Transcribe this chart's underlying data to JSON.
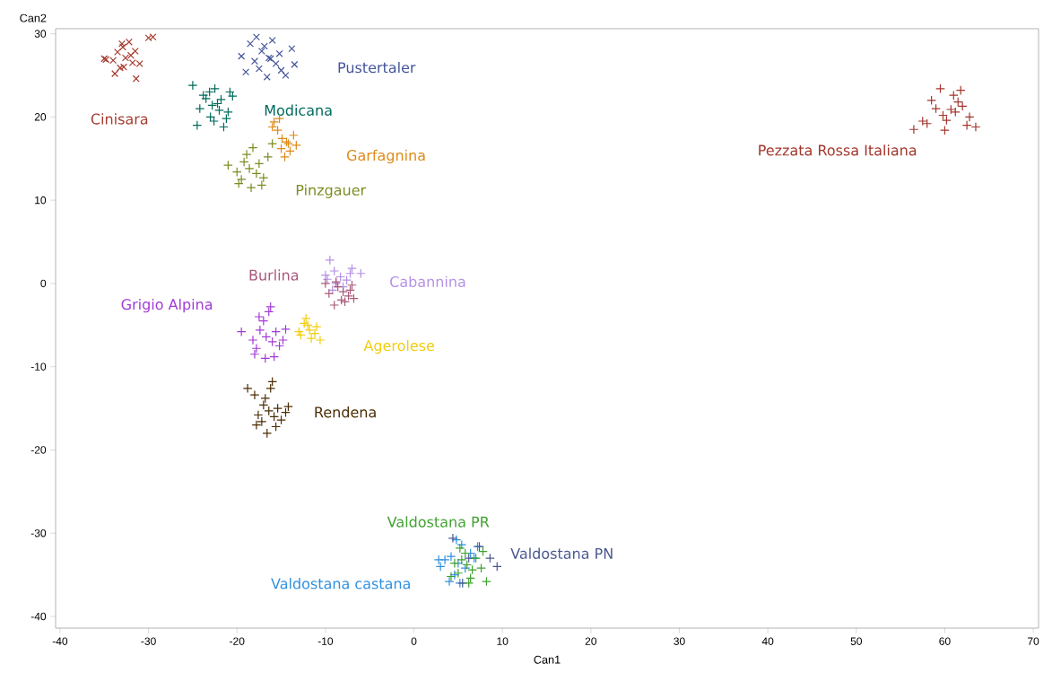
{
  "chart_data": {
    "type": "scatter",
    "xlabel": "Can1",
    "ylabel": "Can2",
    "xlim": [
      -40.5,
      70.6
    ],
    "ylim": [
      -41.4,
      30.6
    ],
    "xticks": [
      -40,
      -30,
      -20,
      -10,
      0,
      10,
      20,
      30,
      40,
      50,
      60,
      70
    ],
    "yticks": [
      -40,
      -30,
      -20,
      -10,
      0,
      10,
      20,
      30
    ],
    "grid": false,
    "series": [
      {
        "name": "Cinisara",
        "color": "#a53b2f",
        "marker": "x",
        "x": [
          -32.6,
          -33.5,
          -31.8,
          -32.9,
          -31.5,
          -34.0,
          -33.2,
          -31.0,
          -32.2,
          -35.0,
          -30.0,
          -33.8,
          -31.4,
          -32.8,
          -33.0,
          -29.5,
          -34.8,
          -32.0
        ],
        "values": [
          27.1,
          27.8,
          26.5,
          28.4,
          27.9,
          26.8,
          25.9,
          26.4,
          29.0,
          27.0,
          29.5,
          25.2,
          24.6,
          26.0,
          28.8,
          29.6,
          26.9,
          27.4
        ]
      },
      {
        "name": "Pustertaler",
        "color": "#45559a",
        "marker": "x",
        "x": [
          -16.4,
          -17.2,
          -15.6,
          -16.9,
          -15.2,
          -18.0,
          -17.5,
          -15.0,
          -16.0,
          -19.5,
          -13.8,
          -18.5,
          -14.5,
          -16.6,
          -17.8,
          -13.5,
          -19.0,
          -16.2
        ],
        "values": [
          27.1,
          27.9,
          26.4,
          28.5,
          27.6,
          26.7,
          25.8,
          25.6,
          29.2,
          27.3,
          28.2,
          28.8,
          25.0,
          24.8,
          29.6,
          26.3,
          25.4,
          27.0
        ]
      },
      {
        "name": "Modicana",
        "color": "#006b5c",
        "marker": "cross",
        "x": [
          -22.8,
          -23.5,
          -22.0,
          -23.1,
          -21.8,
          -24.2,
          -23.0,
          -21.2,
          -22.5,
          -25.0,
          -20.5,
          -24.5,
          -21.5,
          -22.6,
          -23.8,
          -21.0,
          -22.2,
          -20.8
        ],
        "values": [
          21.4,
          22.2,
          20.8,
          23.0,
          22.1,
          21.0,
          20.0,
          19.8,
          23.4,
          23.8,
          22.5,
          19.0,
          18.8,
          19.5,
          22.6,
          20.6,
          21.6,
          23.0
        ]
      },
      {
        "name": "Garfagnina",
        "color": "#dd8a1a",
        "marker": "cross",
        "x": [
          -14.9,
          -15.4,
          -14.2,
          -15.8,
          -14.0,
          -15.0,
          -13.6,
          -14.6,
          -16.0,
          -13.3,
          -15.2,
          -14.4
        ],
        "values": [
          17.4,
          18.4,
          16.8,
          19.4,
          15.9,
          16.2,
          17.8,
          15.2,
          18.8,
          16.6,
          19.8,
          17.0
        ]
      },
      {
        "name": "Pinzgauer",
        "color": "#7a8d22",
        "marker": "cross",
        "x": [
          -18.6,
          -19.2,
          -17.8,
          -18.9,
          -17.5,
          -20.0,
          -19.5,
          -17.0,
          -18.2,
          -21.0,
          -16.5,
          -19.8,
          -17.2,
          -18.4,
          -16.0
        ],
        "values": [
          13.8,
          14.6,
          13.2,
          15.5,
          14.4,
          13.4,
          12.5,
          12.7,
          16.3,
          14.2,
          15.2,
          12.0,
          11.8,
          11.5,
          16.8
        ]
      },
      {
        "name": "Pezzata Rossa Italiana",
        "color": "#a3362d",
        "marker": "cross",
        "x": [
          60.7,
          61.5,
          59.8,
          61.0,
          62.0,
          59.0,
          60.2,
          62.8,
          58.5,
          61.8,
          57.5,
          63.5,
          60.0,
          59.5,
          62.5,
          61.2,
          56.5,
          58.0
        ],
        "values": [
          20.9,
          21.8,
          20.2,
          22.6,
          21.3,
          21.0,
          19.6,
          20.0,
          22.0,
          23.2,
          19.5,
          18.8,
          18.4,
          23.4,
          19.0,
          20.6,
          18.5,
          19.2
        ]
      },
      {
        "name": "Cabannina",
        "color": "#b490e6",
        "marker": "cross",
        "x": [
          -8.3,
          -9.0,
          -7.6,
          -9.5,
          -7.2,
          -8.8,
          -9.8,
          -7.0,
          -8.0,
          -10.0,
          -6.0,
          -9.2
        ],
        "values": [
          0.8,
          1.5,
          0.4,
          2.8,
          1.2,
          0.0,
          0.5,
          1.8,
          -0.4,
          1.0,
          1.2,
          -0.8
        ]
      },
      {
        "name": "Burlina",
        "color": "#a9587a",
        "marker": "cross",
        "x": [
          -8.0,
          -8.6,
          -7.4,
          -9.0,
          -7.0,
          -8.2,
          -9.6,
          -7.8,
          -8.8,
          -6.8,
          -10.0,
          -7.2
        ],
        "values": [
          -1.0,
          -0.4,
          -1.5,
          -2.6,
          -0.2,
          -2.0,
          -1.2,
          -2.2,
          0.2,
          -1.8,
          0.0,
          -0.8
        ]
      },
      {
        "name": "Grigio Alpina",
        "color": "#a23bd6",
        "marker": "cross",
        "x": [
          -16.7,
          -17.4,
          -16.0,
          -17.0,
          -15.6,
          -18.2,
          -17.8,
          -15.2,
          -16.4,
          -19.5,
          -14.5,
          -18.0,
          -15.8,
          -16.8,
          -17.5,
          -14.8,
          -16.2
        ],
        "values": [
          -6.4,
          -5.6,
          -7.0,
          -4.5,
          -5.8,
          -6.8,
          -7.8,
          -7.5,
          -3.4,
          -5.8,
          -5.5,
          -8.5,
          -8.8,
          -9.0,
          -4.0,
          -6.8,
          -2.8
        ]
      },
      {
        "name": "Agerolese",
        "color": "#f2cd0f",
        "marker": "cross",
        "x": [
          -11.8,
          -12.4,
          -11.2,
          -12.2,
          -11.0,
          -12.8,
          -11.6,
          -10.6,
          -12.0,
          -13.0
        ],
        "values": [
          -5.6,
          -4.8,
          -6.0,
          -4.2,
          -5.2,
          -6.2,
          -6.6,
          -6.8,
          -5.0,
          -5.8
        ]
      },
      {
        "name": "Rendena",
        "color": "#4b2d05",
        "marker": "cross",
        "x": [
          -16.4,
          -17.0,
          -15.8,
          -16.8,
          -15.4,
          -17.6,
          -17.2,
          -15.0,
          -16.2,
          -18.8,
          -14.5,
          -17.8,
          -15.6,
          -16.6,
          -16.0,
          -14.2,
          -18.0
        ],
        "values": [
          -15.3,
          -14.6,
          -16.0,
          -13.8,
          -15.0,
          -15.8,
          -16.6,
          -16.4,
          -12.6,
          -12.6,
          -15.5,
          -17.0,
          -17.2,
          -18.0,
          -11.8,
          -14.8,
          -13.4
        ]
      },
      {
        "name": "Valdostana castana",
        "color": "#2f8fe0",
        "marker": "cross",
        "x": [
          5.0,
          4.2,
          5.8,
          3.5,
          6.4,
          4.6,
          3.0,
          5.4,
          4.0,
          6.8,
          2.8,
          5.2,
          7.2,
          4.8
        ],
        "values": [
          -33.6,
          -32.8,
          -34.2,
          -33.2,
          -32.4,
          -35.0,
          -34.0,
          -31.4,
          -35.8,
          -33.0,
          -33.2,
          -36.0,
          -31.6,
          -30.8
        ]
      },
      {
        "name": "Valdostana PN",
        "color": "#4a5890",
        "marker": "cross",
        "x": [
          6.2,
          8.6,
          9.4,
          5.5,
          7.4,
          4.4
        ],
        "values": [
          -33.0,
          -33.0,
          -34.0,
          -36.0,
          -31.6,
          -30.6
        ]
      },
      {
        "name": "Valdostana PR",
        "color": "#3fa12f",
        "marker": "cross",
        "x": [
          6.0,
          5.4,
          6.6,
          5.0,
          7.0,
          5.8,
          4.6,
          6.4,
          7.6,
          5.2,
          8.2,
          6.2,
          7.8,
          4.2
        ],
        "values": [
          -33.8,
          -33.2,
          -34.4,
          -34.8,
          -33.0,
          -32.4,
          -33.6,
          -35.4,
          -34.2,
          -31.8,
          -35.8,
          -36.0,
          -32.2,
          -35.2
        ]
      }
    ]
  }
}
